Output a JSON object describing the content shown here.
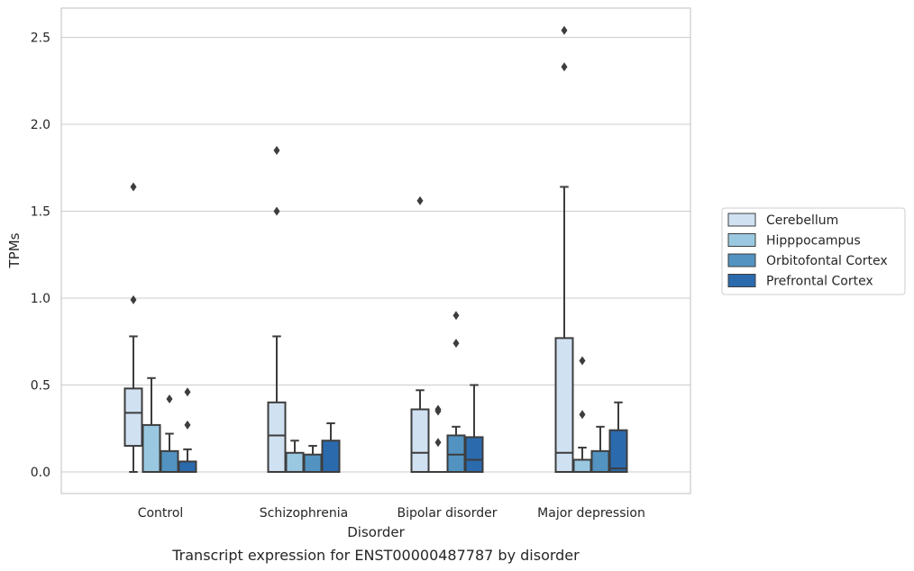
{
  "chart_data": {
    "type": "boxplot",
    "caption": "Transcript expression for ENST00000487787 by disorder",
    "xlabel": "Disorder",
    "ylabel": "TPMs",
    "ylim": [
      -0.12,
      2.67
    ],
    "yticks": [
      0.0,
      0.5,
      1.0,
      1.5,
      2.0,
      2.5
    ],
    "ytick_labels": [
      "0.0",
      "0.5",
      "1.0",
      "1.5",
      "2.0",
      "2.5"
    ],
    "grid": "horizontal",
    "legend_position": "right",
    "categories": [
      "Control",
      "Schizophrenia",
      "Bipolar disorder",
      "Major depression"
    ],
    "series": [
      {
        "name": "Cerebellum",
        "color": "#d0e1f2",
        "boxes": [
          {
            "whislo": 0.0,
            "q1": 0.15,
            "med": 0.34,
            "q3": 0.48,
            "whishi": 0.78,
            "fliers": [
              1.64,
              0.99
            ]
          },
          {
            "whislo": 0.0,
            "q1": 0.0,
            "med": 0.21,
            "q3": 0.4,
            "whishi": 0.78,
            "fliers": [
              1.85,
              1.5
            ]
          },
          {
            "whislo": 0.0,
            "q1": 0.0,
            "med": 0.11,
            "q3": 0.36,
            "whishi": 0.47,
            "fliers": [
              1.56
            ]
          },
          {
            "whislo": 0.0,
            "q1": 0.0,
            "med": 0.11,
            "q3": 0.77,
            "whishi": 1.64,
            "fliers": [
              2.54,
              2.33
            ]
          }
        ]
      },
      {
        "name": "Hipppocampus",
        "color": "#9ac8e0",
        "boxes": [
          {
            "whislo": 0.0,
            "q1": 0.0,
            "med": 0.0,
            "q3": 0.27,
            "whishi": 0.54,
            "fliers": []
          },
          {
            "whislo": 0.0,
            "q1": 0.0,
            "med": 0.0,
            "q3": 0.11,
            "whishi": 0.18,
            "fliers": []
          },
          {
            "whislo": 0.0,
            "q1": 0.0,
            "med": 0.0,
            "q3": 0.0,
            "whishi": 0.0,
            "fliers": [
              0.36,
              0.35,
              0.17
            ]
          },
          {
            "whislo": 0.0,
            "q1": 0.0,
            "med": 0.0,
            "q3": 0.07,
            "whishi": 0.14,
            "fliers": [
              0.64,
              0.33
            ]
          }
        ]
      },
      {
        "name": "Orbitofontal Cortex",
        "color": "#5293c1",
        "boxes": [
          {
            "whislo": 0.0,
            "q1": 0.0,
            "med": 0.0,
            "q3": 0.12,
            "whishi": 0.22,
            "fliers": [
              0.42
            ]
          },
          {
            "whislo": 0.0,
            "q1": 0.0,
            "med": 0.0,
            "q3": 0.1,
            "whishi": 0.15,
            "fliers": []
          },
          {
            "whislo": 0.0,
            "q1": 0.0,
            "med": 0.1,
            "q3": 0.21,
            "whishi": 0.26,
            "fliers": [
              0.9,
              0.74
            ]
          },
          {
            "whislo": 0.0,
            "q1": 0.0,
            "med": 0.0,
            "q3": 0.12,
            "whishi": 0.26,
            "fliers": []
          }
        ]
      },
      {
        "name": "Prefrontal Cortex",
        "color": "#2b6aad",
        "boxes": [
          {
            "whislo": 0.0,
            "q1": 0.0,
            "med": 0.0,
            "q3": 0.06,
            "whishi": 0.13,
            "fliers": [
              0.46,
              0.27
            ]
          },
          {
            "whislo": 0.0,
            "q1": 0.0,
            "med": 0.0,
            "q3": 0.18,
            "whishi": 0.28,
            "fliers": []
          },
          {
            "whislo": 0.0,
            "q1": 0.0,
            "med": 0.07,
            "q3": 0.2,
            "whishi": 0.5,
            "fliers": []
          },
          {
            "whislo": 0.0,
            "q1": 0.0,
            "med": 0.02,
            "q3": 0.24,
            "whishi": 0.4,
            "fliers": []
          }
        ]
      }
    ]
  }
}
